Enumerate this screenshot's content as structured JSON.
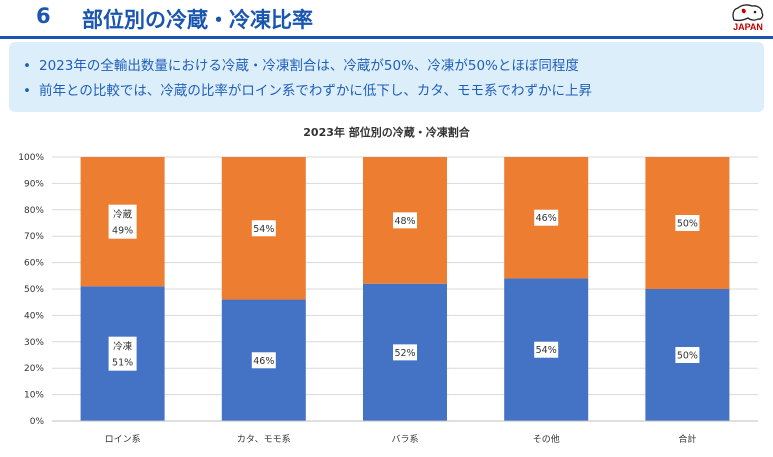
{
  "header": {
    "number": "6",
    "title": "部位別の冷蔵・冷凍比率",
    "logo_text": "JAPAN"
  },
  "summary": {
    "bullet": "•",
    "lines": [
      "2023年の全輸出数量における冷蔵・冷凍割合は、冷蔵が50%、冷凍が50%とほぼ同程度",
      "前年との比較では、冷蔵の比率がロイン系でわずかに低下し、カタ、モモ系でわずかに上昇"
    ]
  },
  "colors": {
    "frozen": "#4472c4",
    "chilled": "#ed7d31",
    "brand": "#1a56b0"
  },
  "chart_data": {
    "type": "bar",
    "stacked": true,
    "title": "2023年 部位別の冷蔵・冷凍割合",
    "categories": [
      "ロイン系",
      "カタ、モモ系",
      "バラ系",
      "その他",
      "合計"
    ],
    "series": [
      {
        "name": "冷凍",
        "values": [
          51,
          46,
          52,
          54,
          50
        ]
      },
      {
        "name": "冷蔵",
        "values": [
          49,
          54,
          48,
          46,
          50
        ]
      }
    ],
    "ylim": [
      0,
      100
    ],
    "yticks": [
      "0%",
      "10%",
      "20%",
      "30%",
      "40%",
      "50%",
      "60%",
      "70%",
      "80%",
      "90%",
      "100%"
    ],
    "grid": true,
    "legend": "none"
  }
}
